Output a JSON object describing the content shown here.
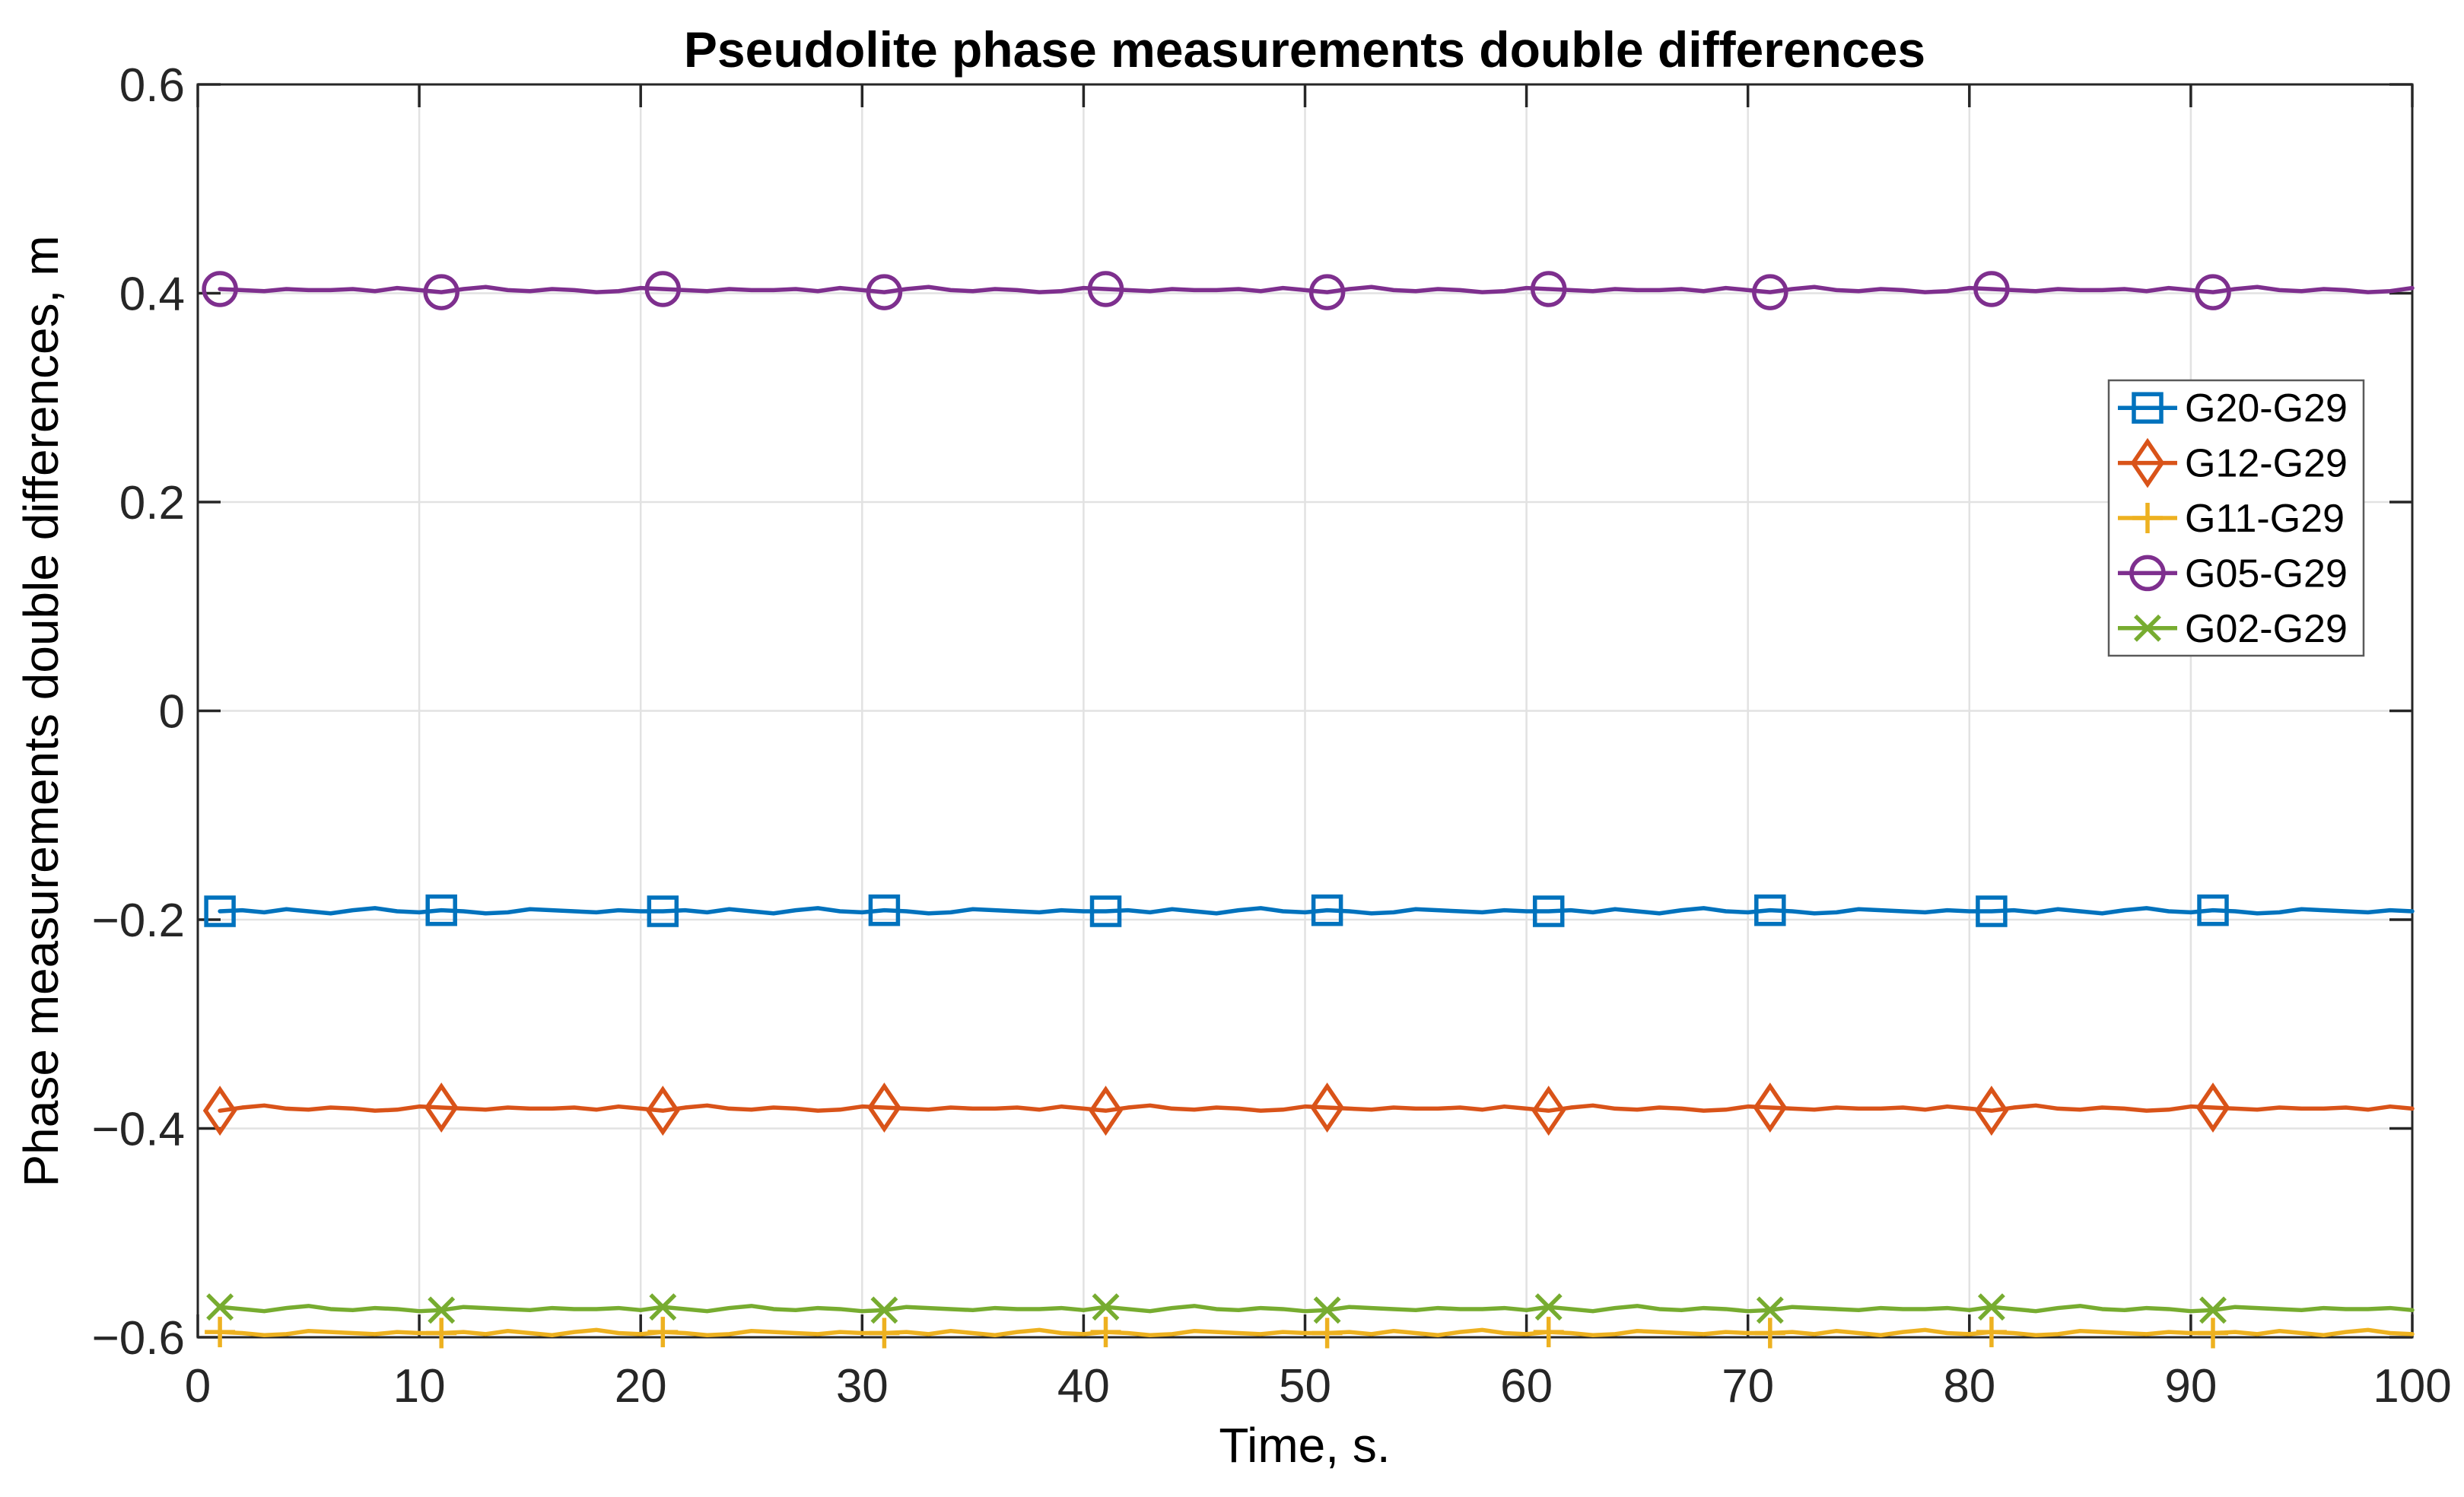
{
  "figure": {
    "background": "#FFFFFF",
    "axis_color": "#262626",
    "grid_color": "#E2E2E2",
    "legend_border_color": "#5A5A5A",
    "legend_background": "#FFFFFF"
  },
  "chart_data": {
    "type": "line",
    "title": "Pseudolite phase measurements double differences",
    "xlabel": "Time, s.",
    "ylabel": "Phase measurements double differences, m",
    "xlim": [
      0,
      100
    ],
    "ylim": [
      -0.6,
      0.6
    ],
    "grid": true,
    "legend_position": "northeast inside",
    "x_ticks": [
      0,
      10,
      20,
      30,
      40,
      50,
      60,
      70,
      80,
      90,
      100
    ],
    "x_tick_labels": [
      "0",
      "10",
      "20",
      "30",
      "40",
      "50",
      "60",
      "70",
      "80",
      "90",
      "100"
    ],
    "y_ticks": [
      -0.6,
      -0.4,
      -0.2,
      0,
      0.2,
      0.4,
      0.6
    ],
    "y_tick_labels": [
      "−0.6",
      "−0.4",
      "−0.2",
      "0",
      "0.2",
      "0.4",
      "0.6"
    ],
    "x_start": 1,
    "x_step": 1,
    "n_points": 100,
    "marker_x": [
      1,
      11,
      21,
      31,
      41,
      51,
      61,
      71,
      81,
      91
    ],
    "series": [
      {
        "name": "G20-G29",
        "color": "#0072BD",
        "marker": "square",
        "base_value": -0.192,
        "y": [
          -0.192,
          -0.191,
          -0.193,
          -0.19,
          -0.192,
          -0.194,
          -0.191,
          -0.189,
          -0.192,
          -0.193,
          -0.191,
          -0.192,
          -0.194,
          -0.193,
          -0.19,
          -0.191,
          -0.192,
          -0.193,
          -0.191,
          -0.192,
          -0.192,
          -0.191,
          -0.193,
          -0.19,
          -0.192,
          -0.194,
          -0.191,
          -0.189,
          -0.192,
          -0.193,
          -0.191,
          -0.192,
          -0.194,
          -0.193,
          -0.19,
          -0.191,
          -0.192,
          -0.193,
          -0.191,
          -0.192,
          -0.192,
          -0.191,
          -0.193,
          -0.19,
          -0.192,
          -0.194,
          -0.191,
          -0.189,
          -0.192,
          -0.193,
          -0.191,
          -0.192,
          -0.194,
          -0.193,
          -0.19,
          -0.191,
          -0.192,
          -0.193,
          -0.191,
          -0.192,
          -0.192,
          -0.191,
          -0.193,
          -0.19,
          -0.192,
          -0.194,
          -0.191,
          -0.189,
          -0.192,
          -0.193,
          -0.191,
          -0.192,
          -0.194,
          -0.193,
          -0.19,
          -0.191,
          -0.192,
          -0.193,
          -0.191,
          -0.192,
          -0.192,
          -0.191,
          -0.193,
          -0.19,
          -0.192,
          -0.194,
          -0.191,
          -0.189,
          -0.192,
          -0.193,
          -0.191,
          -0.192,
          -0.194,
          -0.193,
          -0.19,
          -0.191,
          -0.192,
          -0.193,
          -0.191,
          -0.192
        ]
      },
      {
        "name": "G12-G29",
        "color": "#D95319",
        "marker": "diamond",
        "base_value": -0.381,
        "y": [
          -0.383,
          -0.38,
          -0.378,
          -0.381,
          -0.382,
          -0.38,
          -0.381,
          -0.383,
          -0.382,
          -0.379,
          -0.38,
          -0.381,
          -0.382,
          -0.38,
          -0.381,
          -0.381,
          -0.38,
          -0.382,
          -0.379,
          -0.381,
          -0.383,
          -0.38,
          -0.378,
          -0.381,
          -0.382,
          -0.38,
          -0.381,
          -0.383,
          -0.382,
          -0.379,
          -0.38,
          -0.381,
          -0.382,
          -0.38,
          -0.381,
          -0.381,
          -0.38,
          -0.382,
          -0.379,
          -0.381,
          -0.383,
          -0.38,
          -0.378,
          -0.381,
          -0.382,
          -0.38,
          -0.381,
          -0.383,
          -0.382,
          -0.379,
          -0.38,
          -0.381,
          -0.382,
          -0.38,
          -0.381,
          -0.381,
          -0.38,
          -0.382,
          -0.379,
          -0.381,
          -0.383,
          -0.38,
          -0.378,
          -0.381,
          -0.382,
          -0.38,
          -0.381,
          -0.383,
          -0.382,
          -0.379,
          -0.38,
          -0.381,
          -0.382,
          -0.38,
          -0.381,
          -0.381,
          -0.38,
          -0.382,
          -0.379,
          -0.381,
          -0.383,
          -0.38,
          -0.378,
          -0.381,
          -0.382,
          -0.38,
          -0.381,
          -0.383,
          -0.382,
          -0.379,
          -0.38,
          -0.381,
          -0.382,
          -0.38,
          -0.381,
          -0.381,
          -0.38,
          -0.382,
          -0.379,
          -0.381
        ]
      },
      {
        "name": "G11-G29",
        "color": "#EDB120",
        "marker": "plus",
        "base_value": -0.596,
        "y": [
          -0.595,
          -0.596,
          -0.598,
          -0.597,
          -0.594,
          -0.595,
          -0.596,
          -0.597,
          -0.595,
          -0.596,
          -0.596,
          -0.595,
          -0.597,
          -0.594,
          -0.596,
          -0.598,
          -0.595,
          -0.593,
          -0.596,
          -0.597,
          -0.595,
          -0.596,
          -0.598,
          -0.597,
          -0.594,
          -0.595,
          -0.596,
          -0.597,
          -0.595,
          -0.596,
          -0.596,
          -0.595,
          -0.597,
          -0.594,
          -0.596,
          -0.598,
          -0.595,
          -0.593,
          -0.596,
          -0.597,
          -0.595,
          -0.596,
          -0.598,
          -0.597,
          -0.594,
          -0.595,
          -0.596,
          -0.597,
          -0.595,
          -0.596,
          -0.596,
          -0.595,
          -0.597,
          -0.594,
          -0.596,
          -0.598,
          -0.595,
          -0.593,
          -0.596,
          -0.597,
          -0.595,
          -0.596,
          -0.598,
          -0.597,
          -0.594,
          -0.595,
          -0.596,
          -0.597,
          -0.595,
          -0.596,
          -0.596,
          -0.595,
          -0.597,
          -0.594,
          -0.596,
          -0.598,
          -0.595,
          -0.593,
          -0.596,
          -0.597,
          -0.595,
          -0.596,
          -0.598,
          -0.597,
          -0.594,
          -0.595,
          -0.596,
          -0.597,
          -0.595,
          -0.596,
          -0.596,
          -0.595,
          -0.597,
          -0.594,
          -0.596,
          -0.598,
          -0.595,
          -0.593,
          -0.596,
          -0.597
        ]
      },
      {
        "name": "G05-G29",
        "color": "#7E2F8E",
        "marker": "circle",
        "base_value": 0.403,
        "y": [
          0.404,
          0.403,
          0.402,
          0.404,
          0.403,
          0.403,
          0.404,
          0.402,
          0.405,
          0.403,
          0.401,
          0.404,
          0.406,
          0.403,
          0.402,
          0.404,
          0.403,
          0.401,
          0.402,
          0.405,
          0.404,
          0.403,
          0.402,
          0.404,
          0.403,
          0.403,
          0.404,
          0.402,
          0.405,
          0.403,
          0.401,
          0.404,
          0.406,
          0.403,
          0.402,
          0.404,
          0.403,
          0.401,
          0.402,
          0.405,
          0.404,
          0.403,
          0.402,
          0.404,
          0.403,
          0.403,
          0.404,
          0.402,
          0.405,
          0.403,
          0.401,
          0.404,
          0.406,
          0.403,
          0.402,
          0.404,
          0.403,
          0.401,
          0.402,
          0.405,
          0.404,
          0.403,
          0.402,
          0.404,
          0.403,
          0.403,
          0.404,
          0.402,
          0.405,
          0.403,
          0.401,
          0.404,
          0.406,
          0.403,
          0.402,
          0.404,
          0.403,
          0.401,
          0.402,
          0.405,
          0.404,
          0.403,
          0.402,
          0.404,
          0.403,
          0.403,
          0.404,
          0.402,
          0.405,
          0.403,
          0.401,
          0.404,
          0.406,
          0.403,
          0.402,
          0.404,
          0.403,
          0.401,
          0.402,
          0.405
        ]
      },
      {
        "name": "G02-G29",
        "color": "#77AC30",
        "marker": "x",
        "base_value": -0.573,
        "y": [
          -0.571,
          -0.573,
          -0.575,
          -0.572,
          -0.57,
          -0.573,
          -0.574,
          -0.572,
          -0.573,
          -0.575,
          -0.574,
          -0.571,
          -0.572,
          -0.573,
          -0.574,
          -0.572,
          -0.573,
          -0.573,
          -0.572,
          -0.574,
          -0.571,
          -0.573,
          -0.575,
          -0.572,
          -0.57,
          -0.573,
          -0.574,
          -0.572,
          -0.573,
          -0.575,
          -0.574,
          -0.571,
          -0.572,
          -0.573,
          -0.574,
          -0.572,
          -0.573,
          -0.573,
          -0.572,
          -0.574,
          -0.571,
          -0.573,
          -0.575,
          -0.572,
          -0.57,
          -0.573,
          -0.574,
          -0.572,
          -0.573,
          -0.575,
          -0.574,
          -0.571,
          -0.572,
          -0.573,
          -0.574,
          -0.572,
          -0.573,
          -0.573,
          -0.572,
          -0.574,
          -0.571,
          -0.573,
          -0.575,
          -0.572,
          -0.57,
          -0.573,
          -0.574,
          -0.572,
          -0.573,
          -0.575,
          -0.574,
          -0.571,
          -0.572,
          -0.573,
          -0.574,
          -0.572,
          -0.573,
          -0.573,
          -0.572,
          -0.574,
          -0.571,
          -0.573,
          -0.575,
          -0.572,
          -0.57,
          -0.573,
          -0.574,
          -0.572,
          -0.573,
          -0.575,
          -0.574,
          -0.571,
          -0.572,
          -0.573,
          -0.574,
          -0.572,
          -0.573,
          -0.573,
          -0.572,
          -0.574
        ]
      }
    ]
  }
}
